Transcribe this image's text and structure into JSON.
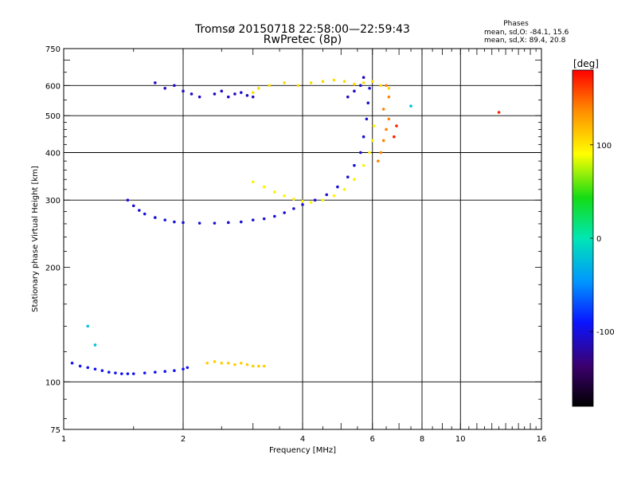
{
  "chart_data": {
    "type": "scatter",
    "title": "Tromsø 20150718 22:58:00—22:59:43",
    "subtitle": "RwPretec (8p)",
    "stats": {
      "heading": "Phases",
      "line_o": "mean, sd,O: -84.1, 15.6",
      "line_x": "mean, sd,X:  89.4, 20.8"
    },
    "xlabel": "Frequency [MHz]",
    "ylabel": "Stationary phase Virtual Height [km]",
    "xscale": "log",
    "yscale": "log",
    "xlim": [
      1,
      16
    ],
    "ylim": [
      75,
      750
    ],
    "xticks": [
      1,
      2,
      4,
      6,
      8,
      10,
      16
    ],
    "yticks": [
      75,
      100,
      200,
      300,
      400,
      500,
      600,
      750
    ],
    "x_gridlines": [
      2,
      4,
      6,
      8,
      10
    ],
    "y_gridlines": [
      100,
      300,
      400,
      500,
      600
    ],
    "grid": true,
    "colorbar": {
      "label": "[deg]",
      "range": [
        -180,
        180
      ],
      "ticks": [
        100,
        0,
        -100
      ],
      "placement": "right"
    },
    "series": [
      {
        "name": "",
        "phase": -95,
        "points": [
          [
            1.05,
            112
          ],
          [
            1.1,
            110
          ],
          [
            1.15,
            109
          ],
          [
            1.2,
            108
          ],
          [
            1.25,
            107
          ],
          [
            1.3,
            106
          ],
          [
            1.35,
            105.5
          ],
          [
            1.4,
            105
          ],
          [
            1.45,
            105
          ],
          [
            1.5,
            105
          ],
          [
            1.6,
            105.5
          ],
          [
            1.7,
            106
          ],
          [
            1.8,
            106.5
          ],
          [
            1.9,
            107
          ],
          [
            2.0,
            108
          ],
          [
            2.05,
            109
          ]
        ]
      },
      {
        "name": "",
        "phase": -105,
        "points": [
          [
            1.45,
            300
          ],
          [
            1.5,
            290
          ],
          [
            1.55,
            282
          ],
          [
            1.6,
            276
          ],
          [
            1.7,
            270
          ],
          [
            1.8,
            266
          ],
          [
            1.9,
            263
          ],
          [
            2.0,
            262
          ],
          [
            2.2,
            261
          ],
          [
            2.4,
            261
          ],
          [
            2.6,
            262
          ],
          [
            2.8,
            263
          ],
          [
            3.0,
            266
          ],
          [
            3.2,
            268
          ],
          [
            3.4,
            272
          ],
          [
            3.6,
            278
          ],
          [
            3.8,
            285
          ],
          [
            4.0,
            292
          ],
          [
            4.3,
            300
          ],
          [
            4.6,
            310
          ],
          [
            4.9,
            325
          ],
          [
            5.2,
            345
          ],
          [
            5.4,
            370
          ],
          [
            5.6,
            400
          ],
          [
            5.7,
            440
          ],
          [
            5.8,
            490
          ],
          [
            5.85,
            540
          ],
          [
            5.9,
            590
          ]
        ]
      },
      {
        "name": "",
        "phase": 95,
        "points": [
          [
            3.0,
            335
          ],
          [
            3.2,
            325
          ],
          [
            3.4,
            315
          ],
          [
            3.6,
            308
          ],
          [
            3.8,
            302
          ],
          [
            4.0,
            298
          ],
          [
            4.2,
            296
          ],
          [
            4.5,
            300
          ],
          [
            4.8,
            308
          ],
          [
            5.1,
            320
          ],
          [
            5.4,
            340
          ],
          [
            5.7,
            370
          ],
          [
            5.9,
            400
          ],
          [
            6.0,
            430
          ],
          [
            6.05,
            470
          ]
        ]
      },
      {
        "name": "",
        "phase": 105,
        "points": [
          [
            3.0,
            575
          ],
          [
            3.1,
            590
          ],
          [
            3.3,
            600
          ],
          [
            3.6,
            610
          ],
          [
            3.9,
            600
          ],
          [
            4.2,
            610
          ],
          [
            4.5,
            615
          ],
          [
            4.8,
            620
          ],
          [
            5.1,
            615
          ],
          [
            5.4,
            605
          ],
          [
            5.7,
            610
          ],
          [
            6.0,
            615
          ],
          [
            6.3,
            600
          ],
          [
            6.6,
            590
          ]
        ]
      },
      {
        "name": "",
        "phase": 110,
        "points": [
          [
            2.3,
            112
          ],
          [
            2.4,
            113
          ],
          [
            2.5,
            112
          ],
          [
            2.6,
            112
          ],
          [
            2.7,
            111
          ],
          [
            2.8,
            112
          ],
          [
            2.9,
            111
          ],
          [
            3.0,
            110
          ],
          [
            3.1,
            110
          ],
          [
            3.2,
            110
          ]
        ]
      },
      {
        "name": "",
        "phase": 140,
        "points": [
          [
            6.2,
            380
          ],
          [
            6.3,
            400
          ],
          [
            6.4,
            430
          ],
          [
            6.5,
            460
          ],
          [
            6.6,
            490
          ],
          [
            6.4,
            520
          ],
          [
            6.6,
            560
          ],
          [
            6.5,
            600
          ]
        ]
      },
      {
        "name": "",
        "phase": -110,
        "points": [
          [
            1.7,
            610
          ],
          [
            1.8,
            590
          ],
          [
            1.9,
            600
          ],
          [
            2.0,
            580
          ],
          [
            2.1,
            570
          ],
          [
            2.2,
            560
          ],
          [
            2.4,
            570
          ],
          [
            2.5,
            580
          ],
          [
            2.6,
            560
          ],
          [
            2.7,
            570
          ],
          [
            2.8,
            575
          ],
          [
            2.9,
            565
          ],
          [
            3.0,
            560
          ],
          [
            5.2,
            560
          ],
          [
            5.4,
            580
          ],
          [
            5.6,
            600
          ],
          [
            5.7,
            630
          ]
        ]
      },
      {
        "name": "",
        "phase": 170,
        "points": [
          [
            12.5,
            510
          ],
          [
            6.8,
            440
          ],
          [
            6.9,
            470
          ]
        ]
      },
      {
        "name": "",
        "phase": -20,
        "points": [
          [
            7.5,
            530
          ],
          [
            1.15,
            140
          ],
          [
            1.2,
            125
          ]
        ]
      }
    ]
  }
}
